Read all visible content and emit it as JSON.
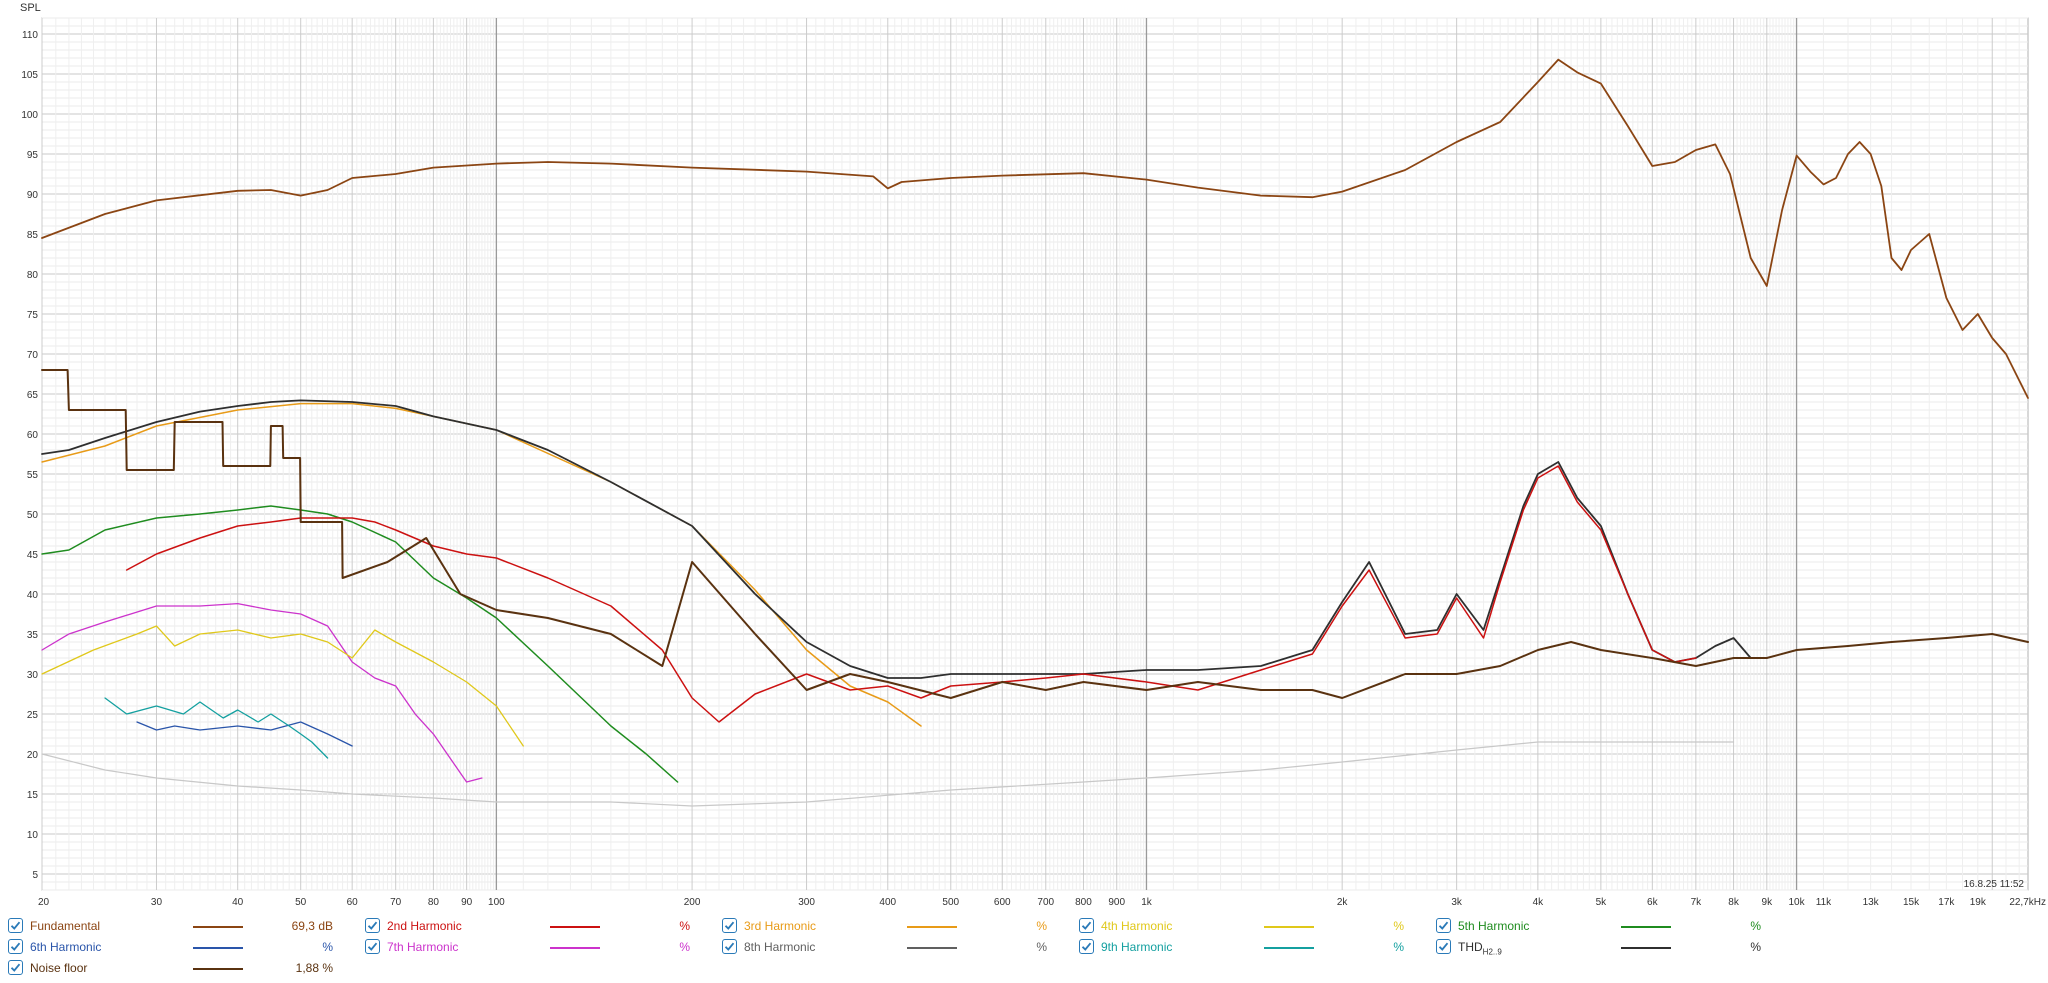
{
  "window": {
    "timestamp": "16.8.25 11:52"
  },
  "chart_data": {
    "type": "line",
    "ylabel": "SPL",
    "xlabel": "",
    "xscale": "log",
    "xlim": [
      20,
      22700
    ],
    "ylim": [
      3,
      112
    ],
    "yticks": [
      5,
      10,
      15,
      20,
      25,
      30,
      35,
      40,
      45,
      50,
      55,
      60,
      65,
      70,
      75,
      80,
      85,
      90,
      95,
      100,
      105,
      110
    ],
    "xticks": [
      {
        "v": 20,
        "label": "20"
      },
      {
        "v": 30,
        "label": "30"
      },
      {
        "v": 40,
        "label": "40"
      },
      {
        "v": 50,
        "label": "50"
      },
      {
        "v": 60,
        "label": "60"
      },
      {
        "v": 70,
        "label": "70"
      },
      {
        "v": 80,
        "label": "80"
      },
      {
        "v": 90,
        "label": "90"
      },
      {
        "v": 100,
        "label": "100"
      },
      {
        "v": 200,
        "label": "200"
      },
      {
        "v": 300,
        "label": "300"
      },
      {
        "v": 400,
        "label": "400"
      },
      {
        "v": 500,
        "label": "500"
      },
      {
        "v": 600,
        "label": "600"
      },
      {
        "v": 700,
        "label": "700"
      },
      {
        "v": 800,
        "label": "800"
      },
      {
        "v": 900,
        "label": "900"
      },
      {
        "v": 1000,
        "label": "1k"
      },
      {
        "v": 2000,
        "label": "2k"
      },
      {
        "v": 3000,
        "label": "3k"
      },
      {
        "v": 4000,
        "label": "4k"
      },
      {
        "v": 5000,
        "label": "5k"
      },
      {
        "v": 6000,
        "label": "6k"
      },
      {
        "v": 7000,
        "label": "7k"
      },
      {
        "v": 8000,
        "label": "8k"
      },
      {
        "v": 9000,
        "label": "9k"
      },
      {
        "v": 10000,
        "label": "10k"
      },
      {
        "v": 11000,
        "label": "11k"
      },
      {
        "v": 13000,
        "label": "13k"
      },
      {
        "v": 15000,
        "label": "15k"
      },
      {
        "v": 17000,
        "label": "17k"
      },
      {
        "v": 19000,
        "label": "19k"
      },
      {
        "v": 22700,
        "label": "22,7kHz"
      }
    ],
    "series": [
      {
        "key": "fundamental",
        "name": "Fundamental",
        "color": "#8b4513",
        "width": 1.8,
        "x": [
          20,
          25,
          30,
          40,
          45,
          50,
          55,
          60,
          70,
          80,
          100,
          120,
          150,
          200,
          300,
          380,
          400,
          420,
          500,
          600,
          800,
          1000,
          1200,
          1500,
          1800,
          2000,
          2500,
          3000,
          3500,
          4000,
          4300,
          4600,
          5000,
          5500,
          6000,
          6500,
          7000,
          7500,
          7900,
          8500,
          9000,
          9500,
          10000,
          10500,
          11000,
          11500,
          12000,
          12500,
          13000,
          13500,
          14000,
          14500,
          15000,
          16000,
          17000,
          18000,
          19000,
          20000,
          21000,
          22700
        ],
        "y": [
          84.5,
          87.5,
          89.2,
          90.4,
          90.5,
          89.8,
          90.5,
          92,
          92.5,
          93.3,
          93.8,
          94,
          93.8,
          93.3,
          92.8,
          92.2,
          90.7,
          91.5,
          92,
          92.3,
          92.6,
          91.8,
          90.8,
          89.8,
          89.6,
          90.3,
          93,
          96.5,
          99,
          104,
          106.8,
          105.2,
          103.8,
          98.5,
          93.5,
          94,
          95.5,
          96.2,
          92.5,
          82,
          78.5,
          88,
          94.8,
          92.8,
          91.2,
          92,
          95,
          96.5,
          95,
          91,
          82,
          80.5,
          83,
          85,
          77,
          73,
          75,
          72,
          70,
          64.5
        ]
      },
      {
        "key": "thd",
        "name": "THD",
        "color": "#2f2f2f",
        "width": 1.8,
        "x": [
          20,
          22,
          25,
          30,
          35,
          40,
          45,
          50,
          60,
          70,
          80,
          100,
          120,
          150,
          200,
          250,
          300,
          350,
          400,
          450,
          500,
          600,
          800,
          1000,
          1200,
          1500,
          1800,
          2000,
          2200,
          2500,
          2800,
          3000,
          3300,
          3500,
          3800,
          4000,
          4300,
          4600,
          5000,
          5500,
          6000,
          6500,
          7000,
          7500,
          8000,
          8500
        ],
        "y": [
          57.5,
          58,
          59.5,
          61.5,
          62.8,
          63.5,
          64,
          64.2,
          64,
          63.5,
          62.2,
          60.5,
          58,
          54,
          48.5,
          40,
          34,
          31,
          29.5,
          29.5,
          30,
          30,
          30,
          30.5,
          30.5,
          31,
          33,
          39,
          44,
          35,
          35.5,
          40,
          35.5,
          42,
          51,
          55,
          56.5,
          52,
          48.5,
          40,
          33,
          31.5,
          32,
          33.5,
          34.5,
          32
        ]
      },
      {
        "key": "h3",
        "name": "3rd Harmonic",
        "color": "#e89b18",
        "width": 1.5,
        "x": [
          20,
          25,
          30,
          40,
          50,
          60,
          70,
          80,
          100,
          150,
          200,
          250,
          300,
          350,
          400,
          450
        ],
        "y": [
          56.5,
          58.5,
          61,
          63,
          63.8,
          63.8,
          63.2,
          62.2,
          60.5,
          54,
          48.5,
          40.5,
          33,
          28.5,
          26.5,
          23.5
        ]
      },
      {
        "key": "h2",
        "name": "2nd Harmonic",
        "color": "#cc1111",
        "width": 1.5,
        "x": [
          27,
          30,
          35,
          40,
          45,
          50,
          55,
          60,
          65,
          70,
          80,
          90,
          100,
          120,
          150,
          180,
          200,
          220,
          250,
          300,
          350,
          400,
          450,
          500,
          600,
          700,
          800,
          1000,
          1200,
          1500,
          1800,
          2000,
          2200,
          2500,
          2800,
          3000,
          3300,
          3500,
          3800,
          4000,
          4300,
          4600,
          5000,
          5500,
          6000,
          6500,
          7000
        ],
        "y": [
          43,
          45,
          47,
          48.5,
          49,
          49.5,
          49.5,
          49.5,
          49,
          48,
          46,
          45,
          44.5,
          42,
          38.5,
          33,
          27,
          24,
          27.5,
          30,
          28,
          28.5,
          27,
          28.5,
          29,
          29.5,
          30,
          29,
          28,
          30.5,
          32.5,
          38.5,
          43,
          34.5,
          35,
          39.5,
          34.5,
          41.5,
          50.5,
          54.5,
          56,
          51.5,
          48,
          40,
          33,
          31.5,
          32
        ]
      },
      {
        "key": "h5",
        "name": "5th Harmonic",
        "color": "#1f8c1f",
        "width": 1.5,
        "x": [
          20,
          22,
          25,
          30,
          35,
          40,
          45,
          50,
          55,
          60,
          70,
          80,
          90,
          100,
          120,
          150,
          170,
          190
        ],
        "y": [
          45,
          45.5,
          48,
          49.5,
          50,
          50.5,
          51,
          50.5,
          50,
          49,
          46.5,
          42,
          39.5,
          37,
          31,
          23.5,
          20,
          16.5
        ]
      },
      {
        "key": "h4",
        "name": "4th Harmonic",
        "color": "#e0c81a",
        "width": 1.3,
        "x": [
          20,
          24,
          28,
          30,
          32,
          35,
          40,
          45,
          50,
          55,
          60,
          65,
          70,
          80,
          90,
          100,
          110
        ],
        "y": [
          30,
          33,
          35,
          36,
          33.5,
          35,
          35.5,
          34.5,
          35,
          34,
          32,
          35.5,
          34,
          31.5,
          29,
          26,
          21
        ]
      },
      {
        "key": "h7",
        "name": "7th Harmonic",
        "color": "#cc33cc",
        "width": 1.3,
        "x": [
          20,
          22,
          25,
          30,
          35,
          40,
          45,
          50,
          55,
          60,
          65,
          70,
          75,
          80,
          90,
          95
        ],
        "y": [
          33,
          35,
          36.5,
          38.5,
          38.5,
          38.8,
          38,
          37.5,
          36,
          31.5,
          29.5,
          28.5,
          25,
          22.5,
          16.5,
          17
        ]
      },
      {
        "key": "h9",
        "name": "9th Harmonic",
        "color": "#14a0a0",
        "width": 1.3,
        "x": [
          25,
          27,
          30,
          33,
          35,
          38,
          40,
          43,
          45,
          48,
          50,
          52,
          55
        ],
        "y": [
          27,
          25,
          26,
          25,
          26.5,
          24.5,
          25.5,
          24,
          25,
          23.5,
          22.5,
          21.5,
          19.5
        ]
      },
      {
        "key": "h6",
        "name": "6th Harmonic",
        "color": "#2a55aa",
        "width": 1.3,
        "x": [
          28,
          30,
          32,
          35,
          40,
          45,
          50,
          55,
          60
        ],
        "y": [
          24,
          23,
          23.5,
          23,
          23.5,
          23,
          24,
          22.5,
          21
        ]
      },
      {
        "key": "noise",
        "name": "Noise floor",
        "color": "#5a3210",
        "width": 2,
        "x": [
          20,
          21.9,
          22,
          26.9,
          27,
          31.9,
          32,
          37.9,
          38,
          44.9,
          45,
          46.9,
          47,
          49.9,
          50,
          57.9,
          58,
          68,
          78,
          88,
          100,
          120,
          150,
          180,
          200,
          250,
          300,
          350,
          400,
          500,
          600,
          700,
          800,
          1000,
          1200,
          1500,
          1800,
          2000,
          2500,
          3000,
          3500,
          4000,
          4500,
          5000,
          6000,
          7000,
          8000,
          9000,
          10000,
          12000,
          14000,
          17000,
          20000,
          22700
        ],
        "y": [
          68,
          68,
          63,
          63,
          55.5,
          55.5,
          61.5,
          61.5,
          56,
          56,
          61,
          61,
          57,
          57,
          49,
          49,
          42,
          44,
          47,
          40,
          38,
          37,
          35,
          31,
          44,
          35,
          28,
          30,
          29,
          27,
          29,
          28,
          29,
          28,
          29,
          28,
          28,
          27,
          30,
          30,
          31,
          33,
          34,
          33,
          32,
          31,
          32,
          32,
          33,
          33.5,
          34,
          34.5,
          35,
          34
        ]
      },
      {
        "key": "gray",
        "name": "8th Harmonic",
        "color": "#c8c8c8",
        "width": 1.2,
        "x": [
          20,
          25,
          30,
          40,
          50,
          60,
          80,
          100,
          150,
          200,
          300,
          500,
          800,
          1000,
          1500,
          2000,
          3000,
          4000,
          5000,
          7000,
          8000
        ],
        "y": [
          20,
          18,
          17,
          16,
          15.5,
          15,
          14.5,
          14,
          14,
          13.5,
          14,
          15.5,
          16.5,
          17,
          18,
          19,
          20.5,
          21.5,
          21.5,
          21.5,
          21.5
        ]
      }
    ]
  },
  "legend": {
    "items": [
      {
        "label": "Fundamental",
        "value": "69,3 dB",
        "color": "#8b4513"
      },
      {
        "label": "2nd Harmonic",
        "value": "%",
        "color": "#cc1111"
      },
      {
        "label": "3rd Harmonic",
        "value": "%",
        "color": "#e89b18"
      },
      {
        "label": "4th Harmonic",
        "value": "%",
        "color": "#e0c81a"
      },
      {
        "label": "5th Harmonic",
        "value": "%",
        "color": "#1f8c1f"
      },
      {
        "label": "6th Harmonic",
        "value": "%",
        "color": "#2a55aa"
      },
      {
        "label": "7th Harmonic",
        "value": "%",
        "color": "#cc33cc"
      },
      {
        "label": "8th Harmonic",
        "value": "%",
        "color": "#606060"
      },
      {
        "label": "9th Harmonic",
        "value": "%",
        "color": "#14a0a0"
      },
      {
        "label": "THD",
        "sub": "H2..9",
        "value": "%",
        "color": "#2f2f2f"
      },
      {
        "label": "Noise floor",
        "value": "1,88 %",
        "color": "#5a3210"
      }
    ]
  }
}
